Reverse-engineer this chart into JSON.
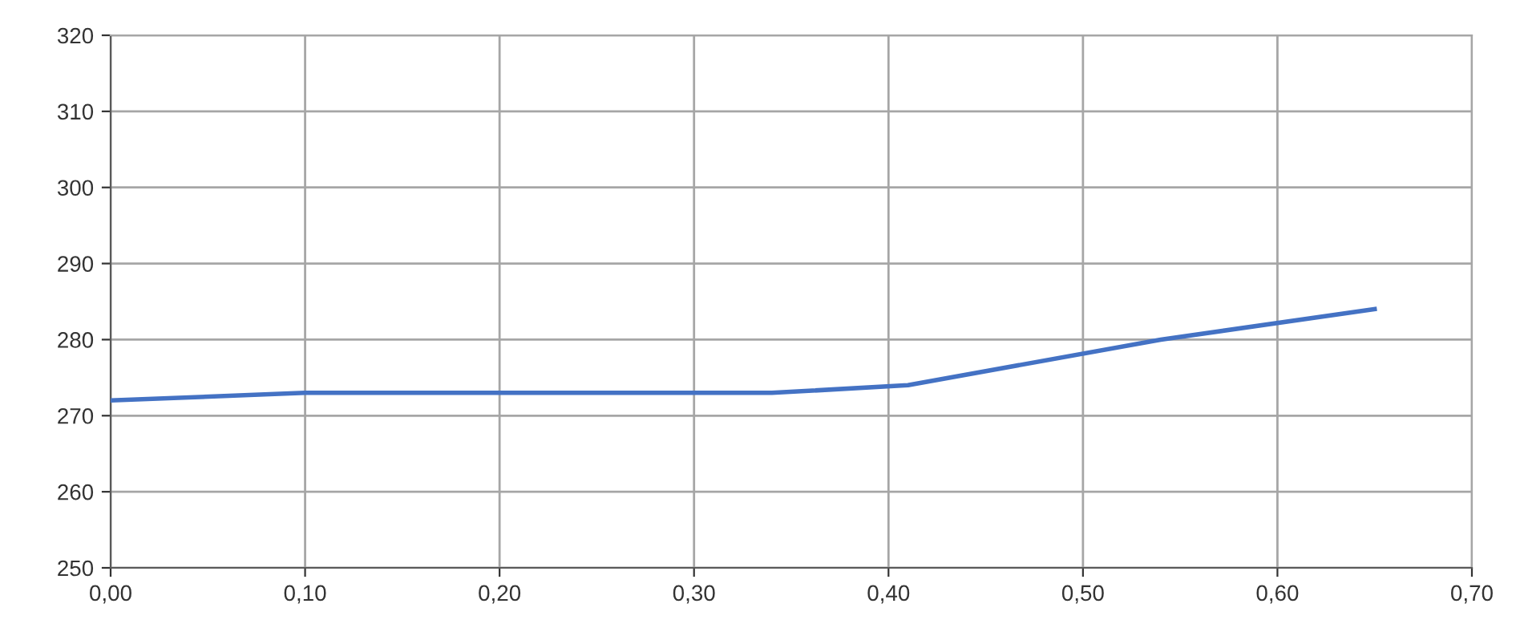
{
  "chart_data": {
    "type": "line",
    "x": [
      0,
      0.1,
      0.34,
      0.41,
      0.54,
      0.65
    ],
    "series": [
      {
        "color": "#4472c4",
        "values": [
          272,
          273,
          273,
          274,
          280,
          284
        ]
      }
    ],
    "xlim": [
      0,
      0.7
    ],
    "xticks": [
      {
        "value": 0,
        "label": "0,00"
      },
      {
        "value": 0.1,
        "label": "0,10"
      },
      {
        "value": 0.2,
        "label": "0,20"
      },
      {
        "value": 0.3,
        "label": "0,30"
      },
      {
        "value": 0.4,
        "label": "0,40"
      },
      {
        "value": 0.5,
        "label": "0,50"
      },
      {
        "value": 0.6,
        "label": "0,60"
      },
      {
        "value": 0.7,
        "label": "0,70"
      }
    ],
    "ylim": [
      250,
      320
    ],
    "yticks": [
      250,
      260,
      270,
      280,
      290,
      300,
      310,
      320
    ],
    "grid": true,
    "marker": "none",
    "line_style": "solid"
  }
}
